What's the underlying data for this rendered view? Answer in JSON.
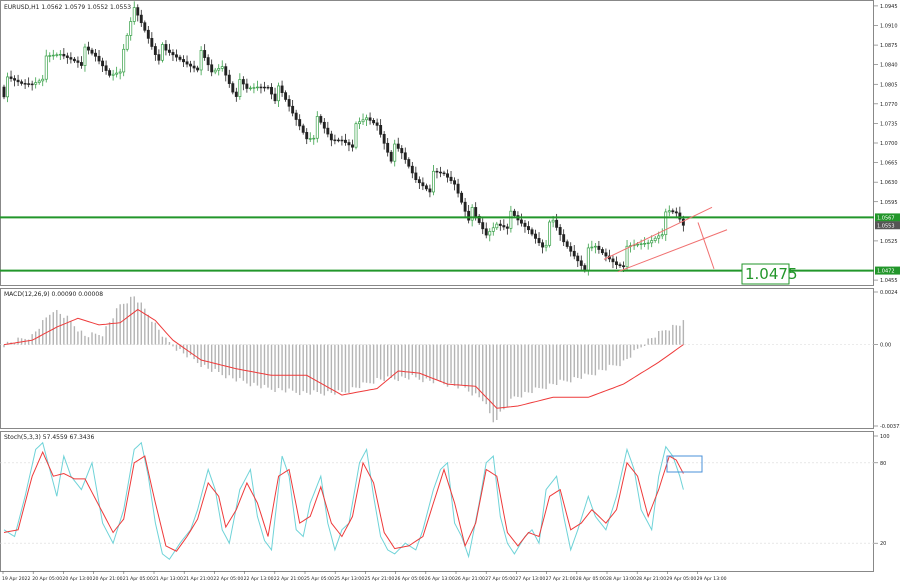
{
  "header": {
    "price_info": "EURUSD,H1  1.0562 1.0579 1.0552 1.0553",
    "macd_info": "MACD(12,26,9) 0.00090 0.00008",
    "stoch_info": "Stoch(5,3,3) 57.4559 67.3436"
  },
  "annotation": {
    "target_label": "1.0475"
  },
  "colors": {
    "bull": "#37a047",
    "bear": "#222222",
    "level": "#22962a",
    "channel": "#f07070",
    "macd_hist": "#b4b4b4",
    "macd_signal": "#ee3a3a",
    "stoch_main": "#6fd3d8",
    "stoch_signal": "#ee3a3a",
    "stoch_box": "#4a90d9",
    "grid": "#d8d8d8"
  },
  "chart_data": [
    {
      "type": "candlestick",
      "symbol": "EURUSD",
      "timeframe": "H1",
      "ylim": [
        1.0448,
        1.0952
      ],
      "y_ticks": [
        "1.0945",
        "1.0910",
        "1.0875",
        "1.0840",
        "1.0805",
        "1.0770",
        "1.0735",
        "1.0700",
        "1.0665",
        "1.0630",
        "1.0595",
        "1.0525",
        "1.0455"
      ],
      "levels": [
        {
          "price": 1.0567,
          "label": "1.0567"
        },
        {
          "price": 1.0472,
          "label": "1.0472"
        }
      ],
      "current_price": {
        "price": 1.0553,
        "label": "1.0553"
      },
      "close_anchors": [
        [
          0,
          1.08
        ],
        [
          5,
          1.0803
        ],
        [
          8,
          1.0812
        ],
        [
          12,
          1.0838
        ],
        [
          16,
          1.0855
        ],
        [
          21,
          1.0858
        ],
        [
          26,
          1.0848
        ],
        [
          30,
          1.0828
        ],
        [
          34,
          1.085
        ],
        [
          37,
          1.0935
        ],
        [
          40,
          1.0905
        ],
        [
          43,
          1.0872
        ],
        [
          46,
          1.0852
        ],
        [
          52,
          1.0848
        ],
        [
          56,
          1.0848
        ],
        [
          59,
          1.082
        ],
        [
          62,
          1.084
        ],
        [
          65,
          1.0805
        ],
        [
          69,
          1.0787
        ],
        [
          72,
          1.08
        ],
        [
          75,
          1.081
        ],
        [
          79,
          1.0776
        ],
        [
          82,
          1.075
        ],
        [
          86,
          1.0718
        ],
        [
          89,
          1.073
        ],
        [
          93,
          1.0702
        ],
        [
          96,
          1.0712
        ],
        [
          99,
          1.071
        ],
        [
          103,
          1.0738
        ],
        [
          106,
          1.0735
        ],
        [
          110,
          1.0685
        ],
        [
          113,
          1.0672
        ],
        [
          117,
          1.0638
        ],
        [
          121,
          1.063
        ],
        [
          125,
          1.0638
        ],
        [
          128,
          1.063
        ],
        [
          131,
          1.0592
        ],
        [
          134,
          1.0555
        ],
        [
          137,
          1.0532
        ],
        [
          140,
          1.0562
        ],
        [
          143,
          1.0565
        ],
        [
          146,
          1.0552
        ],
        [
          149,
          1.0545
        ],
        [
          153,
          1.0528
        ],
        [
          156,
          1.0548
        ],
        [
          159,
          1.052
        ],
        [
          162,
          1.0505
        ],
        [
          165,
          1.049
        ],
        [
          168,
          1.0505
        ],
        [
          171,
          1.0498
        ],
        [
          174,
          1.0493
        ],
        [
          177,
          1.0498
        ],
        [
          180,
          1.0512
        ],
        [
          183,
          1.0525
        ],
        [
          186,
          1.0548
        ],
        [
          189,
          1.0565
        ],
        [
          191,
          1.0568
        ],
        [
          193,
          1.0553
        ]
      ]
    },
    {
      "type": "bar",
      "name": "MACD(12,26,9)",
      "y_ticks": [
        "0.0024",
        "0.00",
        "-0.00371"
      ],
      "ylim": [
        -0.00371,
        0.0024
      ],
      "hist_anchors": [
        [
          0,
          0.0
        ],
        [
          8,
          0.0004
        ],
        [
          14,
          0.0016
        ],
        [
          18,
          0.0012
        ],
        [
          23,
          0.0004
        ],
        [
          28,
          0.0005
        ],
        [
          33,
          0.0018
        ],
        [
          37,
          0.0022
        ],
        [
          41,
          0.0014
        ],
        [
          46,
          0.0002
        ],
        [
          51,
          -0.0004
        ],
        [
          58,
          -0.0011
        ],
        [
          66,
          -0.0016
        ],
        [
          75,
          -0.002
        ],
        [
          85,
          -0.0022
        ],
        [
          96,
          -0.0022
        ],
        [
          106,
          -0.0016
        ],
        [
          116,
          -0.0015
        ],
        [
          126,
          -0.0018
        ],
        [
          131,
          -0.002
        ],
        [
          136,
          -0.0025
        ],
        [
          139,
          -0.0035
        ],
        [
          145,
          -0.0024
        ],
        [
          156,
          -0.0018
        ],
        [
          166,
          -0.0014
        ],
        [
          176,
          -0.0008
        ],
        [
          183,
          0.0002
        ],
        [
          188,
          0.0007
        ],
        [
          193,
          0.001
        ]
      ],
      "signal_anchors": [
        [
          0,
          0.0
        ],
        [
          8,
          0.0002
        ],
        [
          15,
          0.0008
        ],
        [
          21,
          0.0012
        ],
        [
          27,
          0.0009
        ],
        [
          33,
          0.001
        ],
        [
          38,
          0.0016
        ],
        [
          43,
          0.0011
        ],
        [
          48,
          0.0002
        ],
        [
          56,
          -0.0007
        ],
        [
          66,
          -0.0011
        ],
        [
          76,
          -0.0014
        ],
        [
          86,
          -0.0014
        ],
        [
          96,
          -0.0023
        ],
        [
          106,
          -0.002
        ],
        [
          112,
          -0.0012
        ],
        [
          118,
          -0.0013
        ],
        [
          126,
          -0.0018
        ],
        [
          134,
          -0.0019
        ],
        [
          140,
          -0.0029
        ],
        [
          146,
          -0.0028
        ],
        [
          156,
          -0.0024
        ],
        [
          166,
          -0.0024
        ],
        [
          176,
          -0.0018
        ],
        [
          186,
          -0.0008
        ],
        [
          193,
          0.0
        ]
      ]
    },
    {
      "type": "line",
      "name": "Stoch(5,3,3)",
      "y_ticks": [
        "100",
        "80",
        "20"
      ],
      "ylim": [
        0,
        100
      ],
      "main_anchors": [
        [
          0,
          30
        ],
        [
          3,
          25
        ],
        [
          6,
          55
        ],
        [
          9,
          90
        ],
        [
          11,
          95
        ],
        [
          13,
          75
        ],
        [
          15,
          55
        ],
        [
          17,
          85
        ],
        [
          19,
          70
        ],
        [
          22,
          60
        ],
        [
          25,
          80
        ],
        [
          28,
          35
        ],
        [
          31,
          20
        ],
        [
          34,
          45
        ],
        [
          37,
          90
        ],
        [
          39,
          95
        ],
        [
          41,
          70
        ],
        [
          43,
          35
        ],
        [
          45,
          12
        ],
        [
          47,
          8
        ],
        [
          50,
          20
        ],
        [
          53,
          30
        ],
        [
          55,
          45
        ],
        [
          58,
          75
        ],
        [
          60,
          60
        ],
        [
          62,
          30
        ],
        [
          64,
          20
        ],
        [
          67,
          60
        ],
        [
          70,
          75
        ],
        [
          72,
          40
        ],
        [
          74,
          22
        ],
        [
          76,
          15
        ],
        [
          79,
          85
        ],
        [
          81,
          70
        ],
        [
          83,
          30
        ],
        [
          85,
          25
        ],
        [
          87,
          50
        ],
        [
          90,
          70
        ],
        [
          92,
          35
        ],
        [
          94,
          15
        ],
        [
          96,
          30
        ],
        [
          98,
          35
        ],
        [
          101,
          80
        ],
        [
          103,
          90
        ],
        [
          105,
          55
        ],
        [
          107,
          25
        ],
        [
          109,
          15
        ],
        [
          111,
          12
        ],
        [
          114,
          20
        ],
        [
          117,
          15
        ],
        [
          119,
          30
        ],
        [
          122,
          60
        ],
        [
          124,
          75
        ],
        [
          126,
          80
        ],
        [
          128,
          35
        ],
        [
          130,
          25
        ],
        [
          132,
          10
        ],
        [
          135,
          50
        ],
        [
          137,
          80
        ],
        [
          139,
          85
        ],
        [
          141,
          40
        ],
        [
          143,
          20
        ],
        [
          145,
          12
        ],
        [
          148,
          25
        ],
        [
          150,
          30
        ],
        [
          152,
          20
        ],
        [
          154,
          60
        ],
        [
          157,
          70
        ],
        [
          159,
          40
        ],
        [
          161,
          15
        ],
        [
          163,
          30
        ],
        [
          166,
          55
        ],
        [
          168,
          40
        ],
        [
          171,
          30
        ],
        [
          174,
          55
        ],
        [
          177,
          90
        ],
        [
          179,
          75
        ],
        [
          181,
          45
        ],
        [
          184,
          30
        ],
        [
          186,
          70
        ],
        [
          188,
          92
        ],
        [
          190,
          85
        ],
        [
          192,
          70
        ],
        [
          193,
          60
        ]
      ],
      "signal_anchors": [
        [
          0,
          28
        ],
        [
          4,
          30
        ],
        [
          8,
          70
        ],
        [
          11,
          88
        ],
        [
          14,
          70
        ],
        [
          17,
          72
        ],
        [
          20,
          68
        ],
        [
          23,
          68
        ],
        [
          27,
          48
        ],
        [
          31,
          28
        ],
        [
          34,
          38
        ],
        [
          37,
          80
        ],
        [
          40,
          85
        ],
        [
          43,
          50
        ],
        [
          46,
          18
        ],
        [
          49,
          14
        ],
        [
          52,
          25
        ],
        [
          55,
          38
        ],
        [
          58,
          65
        ],
        [
          61,
          55
        ],
        [
          63,
          32
        ],
        [
          66,
          45
        ],
        [
          69,
          65
        ],
        [
          72,
          50
        ],
        [
          75,
          25
        ],
        [
          78,
          70
        ],
        [
          81,
          75
        ],
        [
          84,
          35
        ],
        [
          87,
          40
        ],
        [
          90,
          62
        ],
        [
          93,
          35
        ],
        [
          96,
          25
        ],
        [
          99,
          40
        ],
        [
          102,
          80
        ],
        [
          105,
          65
        ],
        [
          108,
          28
        ],
        [
          111,
          16
        ],
        [
          115,
          18
        ],
        [
          119,
          25
        ],
        [
          122,
          50
        ],
        [
          125,
          75
        ],
        [
          128,
          50
        ],
        [
          131,
          18
        ],
        [
          134,
          35
        ],
        [
          137,
          75
        ],
        [
          140,
          70
        ],
        [
          143,
          28
        ],
        [
          146,
          18
        ],
        [
          149,
          28
        ],
        [
          152,
          25
        ],
        [
          155,
          55
        ],
        [
          158,
          60
        ],
        [
          161,
          30
        ],
        [
          164,
          35
        ],
        [
          167,
          45
        ],
        [
          171,
          35
        ],
        [
          174,
          45
        ],
        [
          177,
          80
        ],
        [
          180,
          70
        ],
        [
          183,
          40
        ],
        [
          186,
          60
        ],
        [
          189,
          85
        ],
        [
          191,
          82
        ],
        [
          193,
          72
        ]
      ]
    }
  ],
  "x_axis": {
    "labels": [
      "19 Apr 2022",
      "20 Apr 05:00",
      "20 Apr 13:00",
      "20 Apr 21:00",
      "21 Apr 05:00",
      "21 Apr 13:00",
      "21 Apr 21:00",
      "22 Apr 05:00",
      "22 Apr 13:00",
      "22 Apr 21:00",
      "25 Apr 05:00",
      "25 Apr 13:00",
      "25 Apr 21:00",
      "26 Apr 05:00",
      "26 Apr 13:00",
      "26 Apr 21:00",
      "27 Apr 05:00",
      "27 Apr 13:00",
      "27 Apr 21:00",
      "28 Apr 05:00",
      "28 Apr 13:00",
      "28 Apr 21:00",
      "29 Apr 05:00",
      "29 Apr 13:00"
    ]
  }
}
